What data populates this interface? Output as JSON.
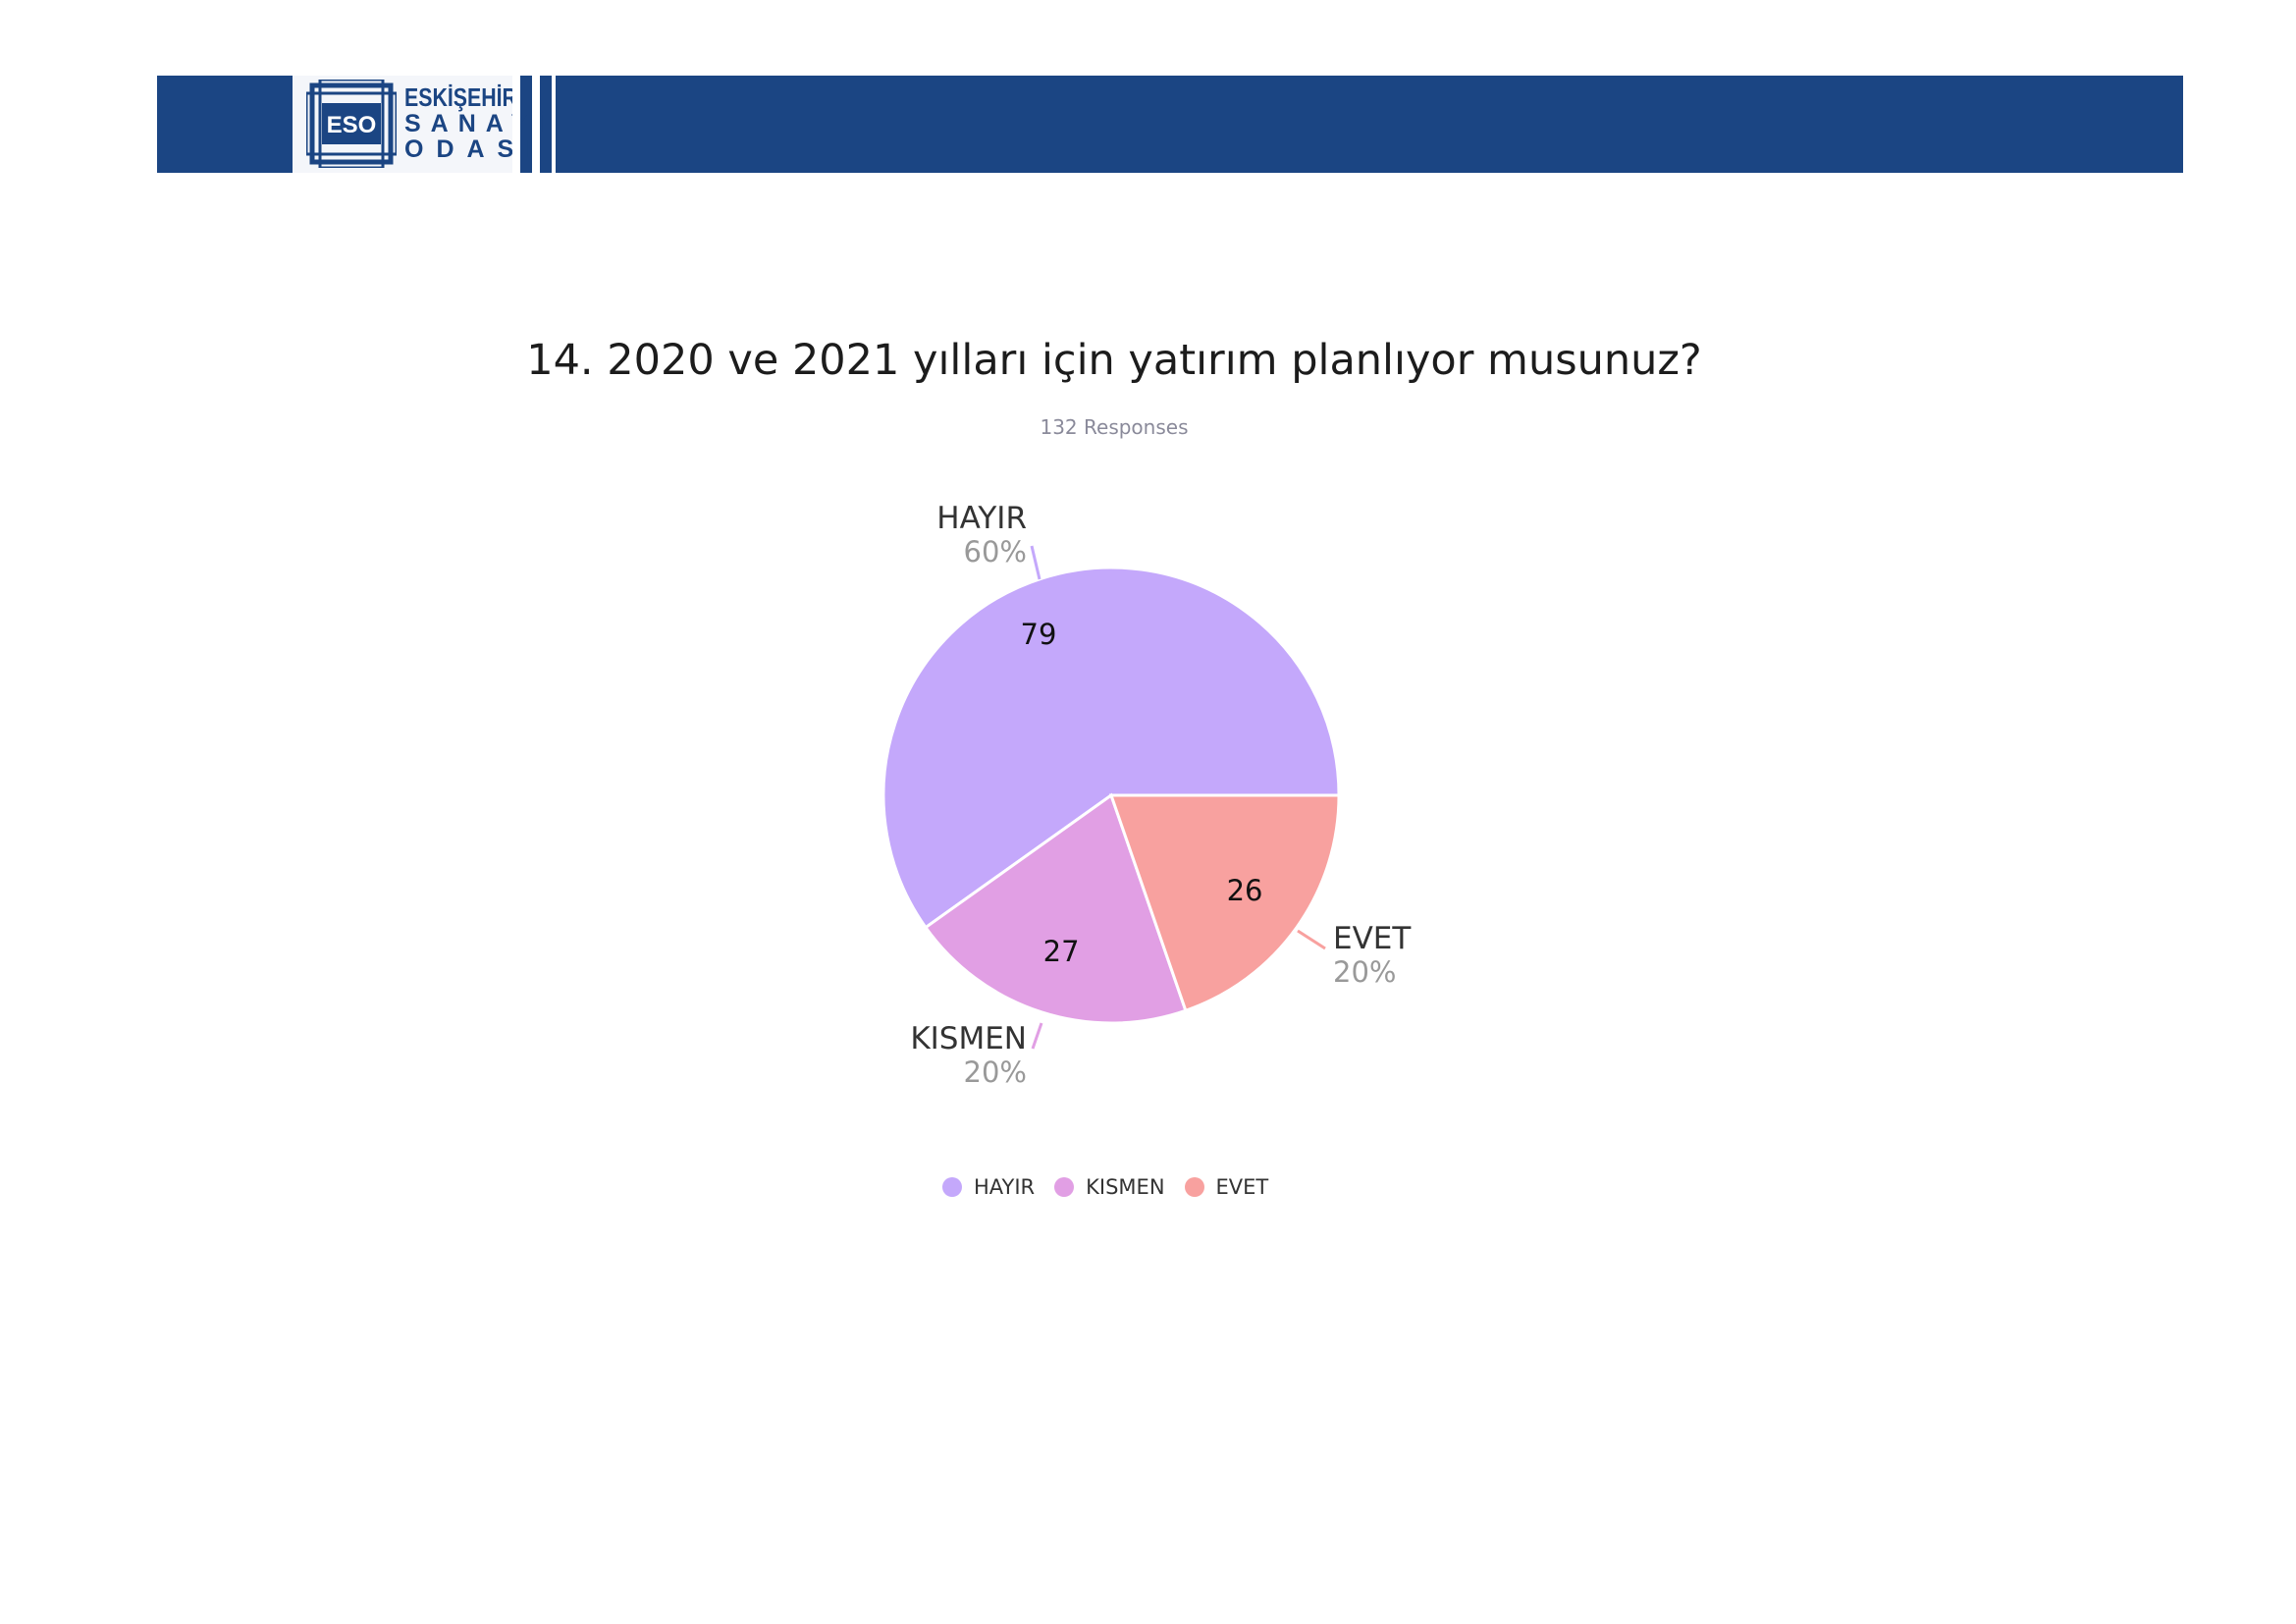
{
  "header": {
    "logo_badge": "ESO",
    "logo_line1": "ESKİŞEHİR",
    "logo_line2": "SANAYİ",
    "logo_line3": "ODASI",
    "band_color": "#1b4583"
  },
  "chart_data": {
    "type": "pie",
    "title": "14. 2020 ve 2021 yılları için yatırım planlıyor musunuz?",
    "subtitle": "132 Responses",
    "slices": [
      {
        "label": "HAYIR",
        "value": 79,
        "percent_label": "60%",
        "color": "#c4a8fb"
      },
      {
        "label": "KISMEN",
        "value": 27,
        "percent_label": "20%",
        "color": "#e19fe4"
      },
      {
        "label": "EVET",
        "value": 26,
        "percent_label": "20%",
        "color": "#f8a19f"
      }
    ],
    "legend_position": "bottom",
    "legend": [
      "HAYIR",
      "KISMEN",
      "EVET"
    ]
  }
}
